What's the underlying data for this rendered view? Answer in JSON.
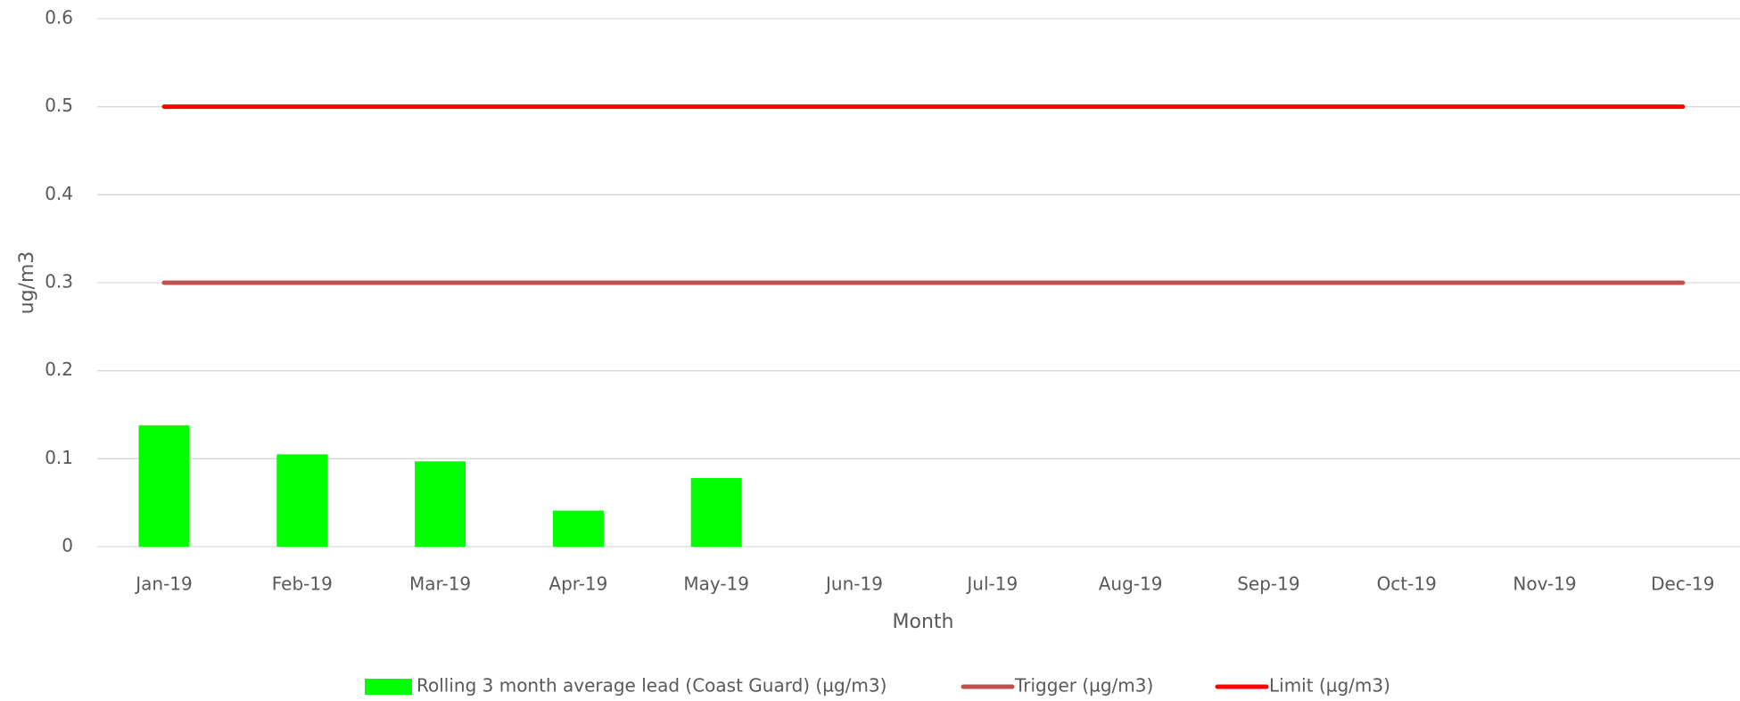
{
  "chart_data": {
    "type": "bar",
    "x_label": "Month",
    "y_label": "ug/m3",
    "categories": [
      "Jan-19",
      "Feb-19",
      "Mar-19",
      "Apr-19",
      "May-19",
      "Jun-19",
      "Jul-19",
      "Aug-19",
      "Sep-19",
      "Oct-19",
      "Nov-19",
      "Dec-19"
    ],
    "series": [
      {
        "name": "Rolling 3 month average lead (Coast Guard) (µg/m3)",
        "type": "bar",
        "color": "#00ff00",
        "values": [
          0.138,
          0.105,
          0.097,
          0.041,
          0.078,
          null,
          null,
          null,
          null,
          null,
          null,
          null
        ]
      },
      {
        "name": "Trigger (µg/m3)",
        "type": "line",
        "color": "#c0504d",
        "values": [
          0.3,
          0.3,
          0.3,
          0.3,
          0.3,
          0.3,
          0.3,
          0.3,
          0.3,
          0.3,
          0.3,
          0.3
        ]
      },
      {
        "name": "Limit (µg/m3)",
        "type": "line",
        "color": "#ff0000",
        "values": [
          0.5,
          0.5,
          0.5,
          0.5,
          0.5,
          0.5,
          0.5,
          0.5,
          0.5,
          0.5,
          0.5,
          0.5
        ]
      }
    ],
    "ylim": [
      0,
      0.6
    ],
    "yticks": [
      0,
      0.1,
      0.2,
      0.3,
      0.4,
      0.5,
      0.6
    ],
    "grid": true,
    "legend": "bottom"
  }
}
